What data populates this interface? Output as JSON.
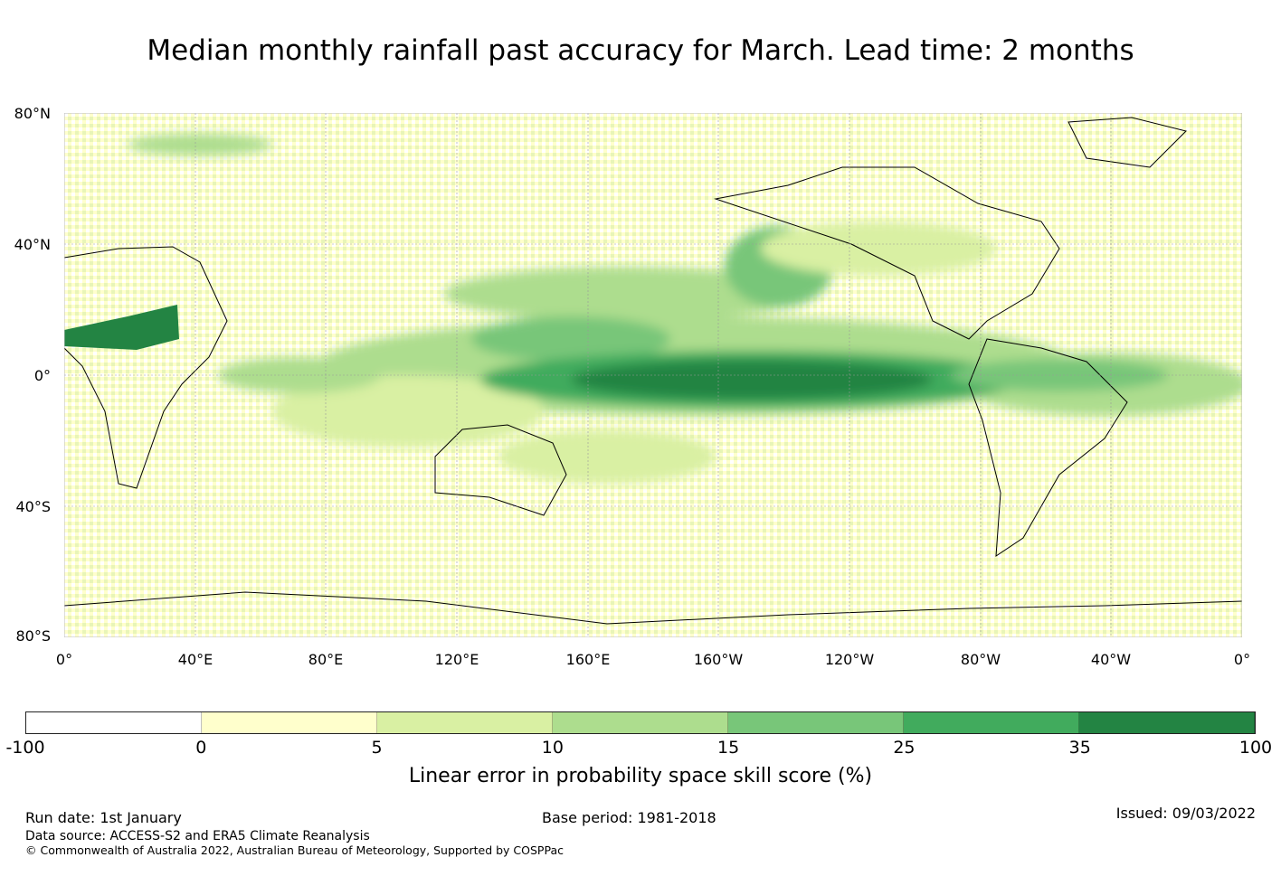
{
  "title": "Median monthly rainfall past accuracy for March. Lead time: 2 months",
  "map": {
    "lat_labels": [
      "80°N",
      "40°N",
      "0°",
      "40°S",
      "80°S"
    ],
    "lon_labels": [
      "0°",
      "40°E",
      "80°E",
      "120°E",
      "160°E",
      "160°W",
      "120°W",
      "80°W",
      "40°W",
      "0°"
    ]
  },
  "colorbar": {
    "ticks": [
      "-100",
      "0",
      "5",
      "10",
      "15",
      "25",
      "35",
      "100"
    ],
    "colors": [
      "#ffffff",
      "#ffffcc",
      "#d9f0a3",
      "#addd8e",
      "#78c679",
      "#41ab5d",
      "#238443"
    ],
    "label": "Linear error in probability space skill score (%)"
  },
  "footer": {
    "run_date": "Run date: 1st January",
    "base_period": "Base period: 1981-2018",
    "issued": "Issued: 09/03/2022",
    "data_source": "Data source: ACCESS-S2 and ERA5 Climate Reanalysis",
    "copyright": "© Commonwealth of Australia 2022, Australian Bureau of Meteorology, Supported by COSPPac"
  }
}
